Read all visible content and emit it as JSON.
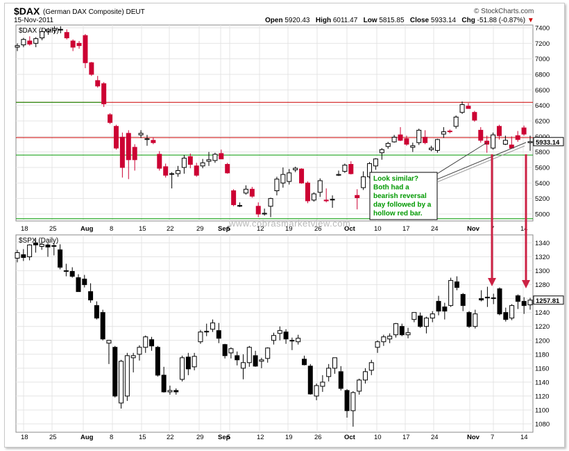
{
  "header": {
    "symbol": "$DAX",
    "name": "(German DAX Composite)",
    "exchange": "DEUT",
    "date": "15-Nov-2011",
    "brand": "© StockCharts.com",
    "open_label": "Open",
    "open": "5920.43",
    "high_label": "High",
    "high": "6011.47",
    "low_label": "Low",
    "low": "5815.85",
    "close_label": "Close",
    "close": "5933.14",
    "chg_label": "Chg",
    "chg": "-51.88 (-0.87%)"
  },
  "watermark": "www.cobrasmarketview.com",
  "annotation": "Look similar? Both had a bearish reversal day followed by a hollow red bar.",
  "annotation_lines": [
    "Look similar?",
    "Both had a",
    "bearish reversal",
    "day followed by a",
    "hollow red bar."
  ],
  "colors": {
    "up": "#ffffff",
    "down_dax": "#cc0033",
    "down_spx": "#000000",
    "support": "#009900",
    "resistance": "#cc0000",
    "arrow": "#cc2244",
    "note": "#009900"
  },
  "chart_data": [
    {
      "type": "candlestick",
      "title": "$DAX (Daily)",
      "ylim": [
        4900,
        7400
      ],
      "yticks": [
        5000,
        5200,
        5400,
        5600,
        5800,
        6000,
        6200,
        6400,
        6600,
        6800,
        7000,
        7200,
        7400
      ],
      "last_value_label": "5933.14",
      "horizontal_lines": [
        {
          "value": 6440,
          "color": "#cc0000"
        },
        {
          "value": 5985,
          "color": "#cc0000"
        },
        {
          "value": 5760,
          "color": "#009900"
        },
        {
          "value": 6440,
          "color": "#009900",
          "segment": "left"
        },
        {
          "value": 4940,
          "color": "#009900"
        }
      ],
      "x_labels": [
        "18",
        "25",
        "Aug",
        "8",
        "15",
        "22",
        "29",
        "Sep",
        "5",
        "12",
        "19",
        "26",
        "Oct",
        "10",
        "17",
        "24",
        "Nov",
        "7",
        "14"
      ],
      "candles": [
        [
          7150,
          7200,
          7100,
          7170
        ],
        [
          7180,
          7270,
          7150,
          7250
        ],
        [
          7230,
          7290,
          7170,
          7190
        ],
        [
          7200,
          7280,
          7150,
          7260
        ],
        [
          7270,
          7370,
          7240,
          7350
        ],
        [
          7360,
          7400,
          7310,
          7380
        ],
        [
          7370,
          7420,
          7330,
          7390
        ],
        [
          7380,
          7420,
          7330,
          7380
        ],
        [
          7340,
          7380,
          7250,
          7270
        ],
        [
          7230,
          7250,
          7100,
          7150
        ],
        [
          7200,
          7230,
          7130,
          7170
        ],
        [
          7300,
          7320,
          6880,
          6950
        ],
        [
          6950,
          6960,
          6780,
          6800
        ],
        [
          6720,
          6780,
          6630,
          6650
        ],
        [
          6680,
          6700,
          6380,
          6420
        ],
        [
          6280,
          6300,
          6160,
          6180
        ],
        [
          6130,
          6150,
          5830,
          5850
        ],
        [
          5990,
          6050,
          5470,
          5600
        ],
        [
          6040,
          6080,
          5450,
          5700
        ],
        [
          5860,
          5900,
          5560,
          5700
        ],
        [
          6020,
          6080,
          5980,
          6040
        ],
        [
          5960,
          6020,
          5880,
          5970
        ],
        [
          5950,
          5990,
          5900,
          5920
        ],
        [
          5770,
          5810,
          5560,
          5590
        ],
        [
          5610,
          5650,
          5470,
          5500
        ],
        [
          5520,
          5540,
          5330,
          5520
        ],
        [
          5520,
          5620,
          5480,
          5560
        ],
        [
          5600,
          5760,
          5520,
          5720
        ],
        [
          5740,
          5780,
          5590,
          5640
        ],
        [
          5620,
          5660,
          5480,
          5500
        ],
        [
          5620,
          5710,
          5590,
          5660
        ],
        [
          5680,
          5800,
          5620,
          5700
        ],
        [
          5690,
          5790,
          5660,
          5770
        ],
        [
          5780,
          5830,
          5720,
          5710
        ],
        [
          5640,
          5660,
          5520,
          5530
        ],
        [
          5300,
          5320,
          5100,
          5120
        ],
        [
          5110,
          5150,
          5090,
          5110
        ],
        [
          5270,
          5370,
          5250,
          5320
        ],
        [
          5320,
          5350,
          5210,
          5230
        ],
        [
          5100,
          5150,
          4960,
          5000
        ],
        [
          5000,
          5070,
          4980,
          5010
        ],
        [
          5100,
          5210,
          4960,
          5200
        ],
        [
          5300,
          5480,
          5240,
          5450
        ],
        [
          5400,
          5600,
          5340,
          5510
        ],
        [
          5420,
          5580,
          5380,
          5530
        ],
        [
          5570,
          5610,
          5540,
          5590
        ],
        [
          5580,
          5590,
          5390,
          5400
        ],
        [
          5400,
          5420,
          5140,
          5170
        ],
        [
          5180,
          5280,
          5160,
          5260
        ],
        [
          5280,
          5460,
          5220,
          5430
        ],
        [
          5180,
          5330,
          5150,
          5170
        ],
        [
          5190,
          5240,
          5080,
          5190
        ],
        [
          5500,
          5560,
          5490,
          5510
        ],
        [
          5550,
          5650,
          5530,
          5630
        ],
        [
          5640,
          5680,
          5510,
          5520
        ],
        [
          5240,
          5320,
          5060,
          5210
        ],
        [
          5340,
          5550,
          5310,
          5480
        ],
        [
          5480,
          5670,
          5460,
          5650
        ],
        [
          5620,
          5720,
          5570,
          5710
        ],
        [
          5790,
          5850,
          5700,
          5830
        ],
        [
          5870,
          5930,
          5840,
          5910
        ],
        [
          5930,
          6020,
          5920,
          5990
        ],
        [
          6020,
          6120,
          5940,
          5950
        ],
        [
          5970,
          6010,
          5880,
          5900
        ],
        [
          5860,
          5920,
          5800,
          5880
        ],
        [
          5920,
          6100,
          5890,
          6080
        ],
        [
          5990,
          6080,
          5900,
          5920
        ],
        [
          5830,
          5880,
          5810,
          5850
        ],
        [
          5820,
          5970,
          5790,
          5960
        ],
        [
          6030,
          6120,
          5980,
          6060
        ],
        [
          6070,
          6090,
          6040,
          6060
        ],
        [
          6130,
          6270,
          6100,
          6250
        ],
        [
          6310,
          6450,
          6290,
          6410
        ],
        [
          6390,
          6430,
          6380,
          6360
        ],
        [
          6310,
          6330,
          6190,
          6210
        ],
        [
          6080,
          6120,
          5920,
          5950
        ],
        [
          5940,
          6010,
          5790,
          5900
        ],
        [
          5850,
          6050,
          5830,
          6020
        ],
        [
          6130,
          6150,
          5960,
          6010
        ],
        [
          5900,
          6010,
          5890,
          5950
        ],
        [
          5890,
          6000,
          5840,
          5850
        ],
        [
          6010,
          6070,
          5930,
          5960
        ],
        [
          6110,
          6140,
          6010,
          6030
        ],
        [
          5920,
          6010,
          5815,
          5933
        ]
      ]
    },
    {
      "type": "candlestick",
      "title": "$SPX (Daily)",
      "ylim": [
        1070,
        1350
      ],
      "yticks": [
        1080,
        1100,
        1120,
        1140,
        1160,
        1180,
        1200,
        1220,
        1240,
        1260,
        1280,
        1300,
        1320,
        1340
      ],
      "last_value_label": "1257.81",
      "x_labels": [
        "18",
        "25",
        "Aug",
        "8",
        "15",
        "22",
        "29",
        "Sep",
        "5",
        "12",
        "19",
        "26",
        "Oct",
        "10",
        "17",
        "24",
        "Nov",
        "7",
        "14"
      ],
      "candles": [
        [
          1318,
          1330,
          1312,
          1326
        ],
        [
          1323,
          1331,
          1314,
          1319
        ],
        [
          1320,
          1338,
          1315,
          1337
        ],
        [
          1340,
          1346,
          1326,
          1337
        ],
        [
          1335,
          1341,
          1330,
          1338
        ],
        [
          1337,
          1340,
          1320,
          1334
        ],
        [
          1336,
          1340,
          1322,
          1335
        ],
        [
          1330,
          1338,
          1302,
          1305
        ],
        [
          1300,
          1310,
          1292,
          1300
        ],
        [
          1299,
          1305,
          1290,
          1292
        ],
        [
          1290,
          1295,
          1270,
          1270
        ],
        [
          1288,
          1294,
          1276,
          1280
        ],
        [
          1270,
          1282,
          1254,
          1258
        ],
        [
          1250,
          1256,
          1230,
          1232
        ],
        [
          1240,
          1244,
          1200,
          1202
        ],
        [
          1196,
          1200,
          1166,
          1200
        ],
        [
          1190,
          1192,
          1118,
          1120
        ],
        [
          1110,
          1172,
          1102,
          1170
        ],
        [
          1120,
          1182,
          1113,
          1178
        ],
        [
          1175,
          1182,
          1154,
          1178
        ],
        [
          1180,
          1193,
          1171,
          1190
        ],
        [
          1190,
          1207,
          1182,
          1205
        ],
        [
          1201,
          1205,
          1185,
          1192
        ],
        [
          1190,
          1192,
          1148,
          1150
        ],
        [
          1150,
          1162,
          1125,
          1126
        ],
        [
          1126,
          1135,
          1122,
          1128
        ],
        [
          1128,
          1131,
          1122,
          1126
        ],
        [
          1144,
          1178,
          1141,
          1175
        ],
        [
          1176,
          1182,
          1150,
          1159
        ],
        [
          1162,
          1182,
          1157,
          1177
        ],
        [
          1198,
          1215,
          1195,
          1212
        ],
        [
          1212,
          1224,
          1206,
          1213
        ],
        [
          1216,
          1230,
          1212,
          1225
        ],
        [
          1214,
          1225,
          1196,
          1203
        ],
        [
          1194,
          1195,
          1174,
          1178
        ],
        [
          1182,
          1190,
          1174,
          1188
        ],
        [
          1178,
          1184,
          1164,
          1172
        ],
        [
          1160,
          1180,
          1144,
          1168
        ],
        [
          1168,
          1192,
          1162,
          1190
        ],
        [
          1178,
          1185,
          1162,
          1163
        ],
        [
          1170,
          1175,
          1160,
          1172
        ],
        [
          1174,
          1190,
          1168,
          1189
        ],
        [
          1200,
          1211,
          1194,
          1207
        ],
        [
          1210,
          1220,
          1200,
          1214
        ],
        [
          1212,
          1216,
          1195,
          1202
        ],
        [
          1200,
          1204,
          1186,
          1200
        ],
        [
          1198,
          1208,
          1194,
          1203
        ],
        [
          1173,
          1178,
          1164,
          1165
        ],
        [
          1163,
          1166,
          1122,
          1123
        ],
        [
          1120,
          1138,
          1114,
          1135
        ],
        [
          1134,
          1150,
          1126,
          1140
        ],
        [
          1148,
          1166,
          1141,
          1160
        ],
        [
          1160,
          1175,
          1152,
          1175
        ],
        [
          1155,
          1163,
          1128,
          1131
        ],
        [
          1128,
          1130,
          1089,
          1099
        ],
        [
          1099,
          1127,
          1076,
          1125
        ],
        [
          1127,
          1145,
          1122,
          1143
        ],
        [
          1143,
          1160,
          1138,
          1155
        ],
        [
          1157,
          1172,
          1150,
          1168
        ],
        [
          1190,
          1200,
          1182,
          1198
        ],
        [
          1198,
          1208,
          1192,
          1205
        ],
        [
          1202,
          1210,
          1196,
          1206
        ],
        [
          1208,
          1225,
          1204,
          1224
        ],
        [
          1220,
          1224,
          1206,
          1208
        ],
        [
          1208,
          1218,
          1203,
          1211
        ],
        [
          1230,
          1240,
          1226,
          1240
        ],
        [
          1235,
          1240,
          1218,
          1220
        ],
        [
          1220,
          1234,
          1210,
          1232
        ],
        [
          1232,
          1242,
          1226,
          1238
        ],
        [
          1256,
          1264,
          1236,
          1242
        ],
        [
          1248,
          1254,
          1230,
          1242
        ],
        [
          1250,
          1290,
          1248,
          1286
        ],
        [
          1284,
          1292,
          1272,
          1276
        ],
        [
          1266,
          1268,
          1242,
          1250
        ],
        [
          1240,
          1242,
          1218,
          1220
        ],
        [
          1220,
          1244,
          1217,
          1238
        ],
        [
          1260,
          1272,
          1256,
          1258
        ],
        [
          1261,
          1277,
          1248,
          1262
        ],
        [
          1260,
          1267,
          1252,
          1261
        ],
        [
          1274,
          1276,
          1236,
          1238
        ],
        [
          1240,
          1247,
          1227,
          1230
        ],
        [
          1232,
          1252,
          1229,
          1250
        ],
        [
          1264,
          1266,
          1245,
          1256
        ],
        [
          1256,
          1262,
          1238,
          1250
        ],
        [
          1251,
          1261,
          1244,
          1257.81
        ]
      ]
    }
  ]
}
